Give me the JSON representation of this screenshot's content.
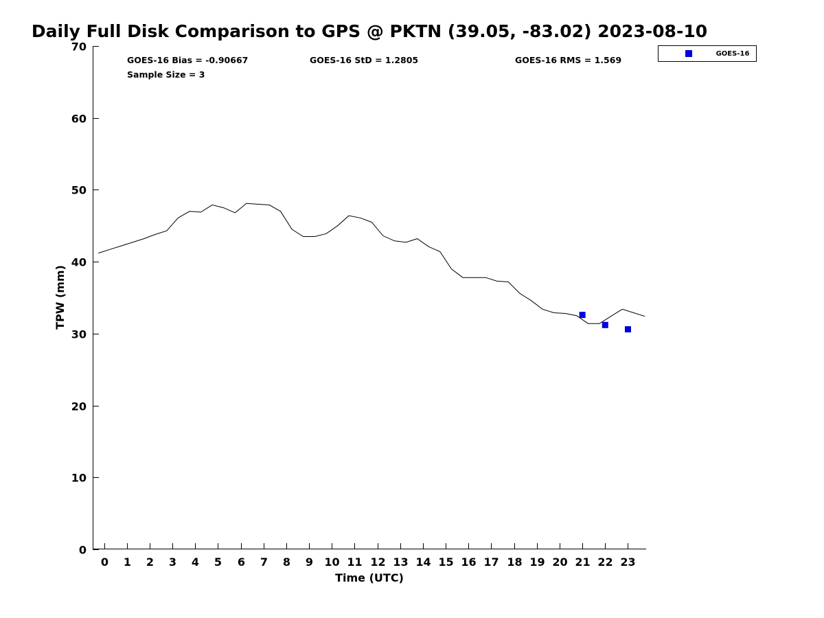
{
  "chart_data": {
    "type": "line",
    "title": "Daily Full Disk Comparison to GPS @ PKTN (39.05, -83.02) 2023-08-10",
    "xlabel": "Time (UTC)",
    "ylabel": "TPW (mm)",
    "xlim": [
      -0.5,
      23.8
    ],
    "ylim": [
      0,
      70
    ],
    "xticks": [
      0,
      1,
      2,
      3,
      4,
      5,
      6,
      7,
      8,
      9,
      10,
      11,
      12,
      13,
      14,
      15,
      16,
      17,
      18,
      19,
      20,
      21,
      22,
      23
    ],
    "yticks": [
      0,
      10,
      20,
      30,
      40,
      50,
      60,
      70
    ],
    "grid": false,
    "legend_position": "outside-top-right",
    "stats": {
      "bias": "GOES-16 Bias = -0.90667",
      "std": "GOES-16 StD = 1.2805",
      "rms": "GOES-16 RMS = 1.569",
      "sample_size": "Sample Size = 3"
    },
    "series": [
      {
        "style": "line",
        "color": "#000000",
        "x": [
          -0.25,
          0.25,
          0.75,
          1.25,
          1.75,
          2.25,
          2.75,
          3.25,
          3.75,
          4.25,
          4.75,
          5.25,
          5.75,
          6.25,
          6.75,
          7.25,
          7.75,
          8.25,
          8.75,
          9.25,
          9.75,
          10.25,
          10.75,
          11.25,
          11.75,
          12.25,
          12.75,
          13.25,
          13.75,
          14.25,
          14.75,
          15.25,
          15.75,
          16.25,
          16.75,
          17.25,
          17.75,
          18.25,
          18.75,
          19.25,
          19.75,
          20.25,
          20.75,
          21.25,
          21.75,
          22.25,
          22.75,
          23.25,
          23.75
        ],
        "values": [
          41.2,
          41.7,
          42.2,
          42.7,
          43.2,
          43.8,
          44.3,
          46.1,
          47.0,
          46.9,
          47.9,
          47.5,
          46.8,
          48.1,
          48.0,
          47.9,
          47.0,
          44.5,
          43.5,
          43.5,
          43.9,
          45.0,
          46.4,
          46.1,
          45.5,
          43.6,
          42.9,
          42.7,
          43.2,
          42.1,
          41.4,
          39.0,
          37.8,
          37.8,
          37.8,
          37.3,
          37.2,
          35.6,
          34.6,
          33.4,
          32.9,
          32.8,
          32.5,
          31.4,
          31.4,
          32.4,
          33.4,
          32.9,
          32.4
        ]
      },
      {
        "name": "GOES-16",
        "style": "marker",
        "marker": "square",
        "color": "#0000dd",
        "x": [
          21,
          22,
          23
        ],
        "values": [
          32.6,
          31.2,
          30.6
        ]
      }
    ]
  }
}
